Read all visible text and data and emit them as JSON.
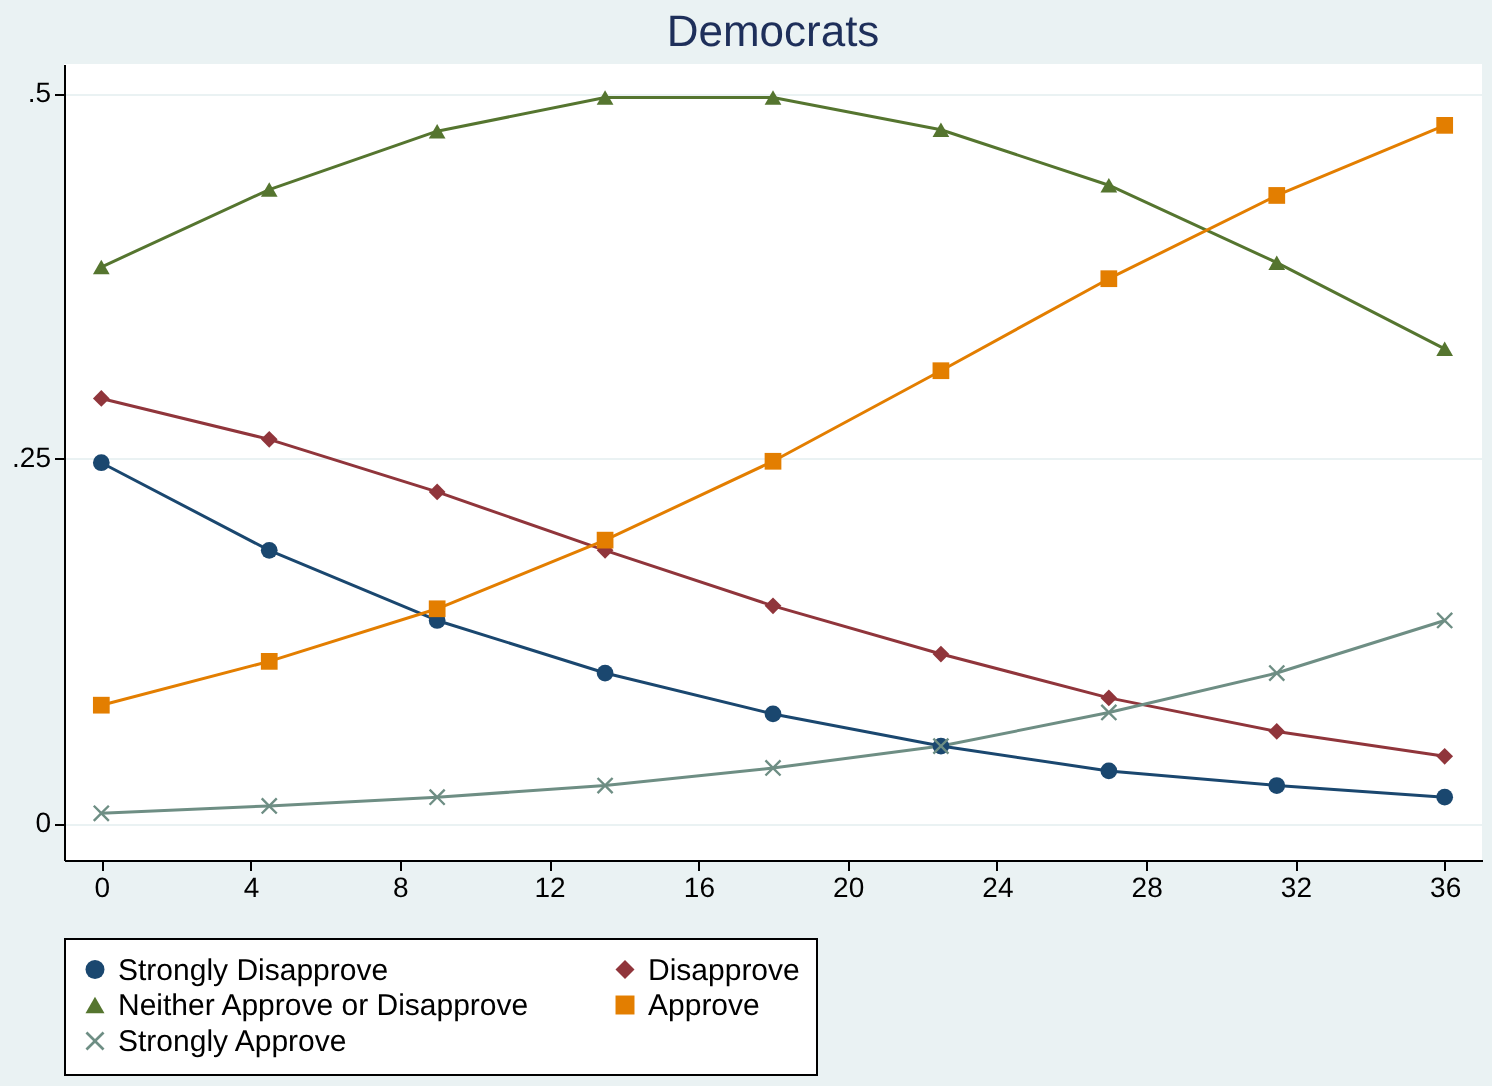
{
  "chart_data": {
    "type": "line",
    "title": "Democrats",
    "x": [
      0,
      4.5,
      9,
      13.5,
      18,
      22.5,
      27,
      31.5,
      36
    ],
    "xlim": [
      -1,
      37
    ],
    "xticks": [
      0,
      4,
      8,
      12,
      16,
      20,
      24,
      28,
      32,
      36
    ],
    "ylim": [
      -0.025,
      0.52
    ],
    "yticks": [
      {
        "value": 0,
        "label": "0"
      },
      {
        "value": 0.25,
        "label": ".25"
      },
      {
        "value": 0.5,
        "label": ".5"
      }
    ],
    "grid": "y",
    "legend": "bottom",
    "series": [
      {
        "name": "Strongly Disapprove",
        "color": "#1a476f",
        "marker": "circle",
        "values": [
          0.247,
          0.187,
          0.139,
          0.103,
          0.075,
          0.053,
          0.036,
          0.026,
          0.018
        ]
      },
      {
        "name": "Disapprove",
        "color": "#90353b",
        "marker": "diamond",
        "values": [
          0.291,
          0.263,
          0.227,
          0.187,
          0.149,
          0.116,
          0.086,
          0.063,
          0.046
        ]
      },
      {
        "name": "Neither Approve or Disapprove",
        "color": "#55752f",
        "marker": "triangle",
        "values": [
          0.381,
          0.434,
          0.474,
          0.497,
          0.497,
          0.475,
          0.437,
          0.384,
          0.325
        ]
      },
      {
        "name": "Approve",
        "color": "#e37e00",
        "marker": "square",
        "values": [
          0.081,
          0.111,
          0.147,
          0.194,
          0.248,
          0.31,
          0.373,
          0.43,
          0.478
        ]
      },
      {
        "name": "Strongly Approve",
        "color": "#6e8e84",
        "marker": "cross",
        "values": [
          0.007,
          0.012,
          0.018,
          0.026,
          0.038,
          0.053,
          0.076,
          0.103,
          0.139
        ]
      }
    ]
  }
}
